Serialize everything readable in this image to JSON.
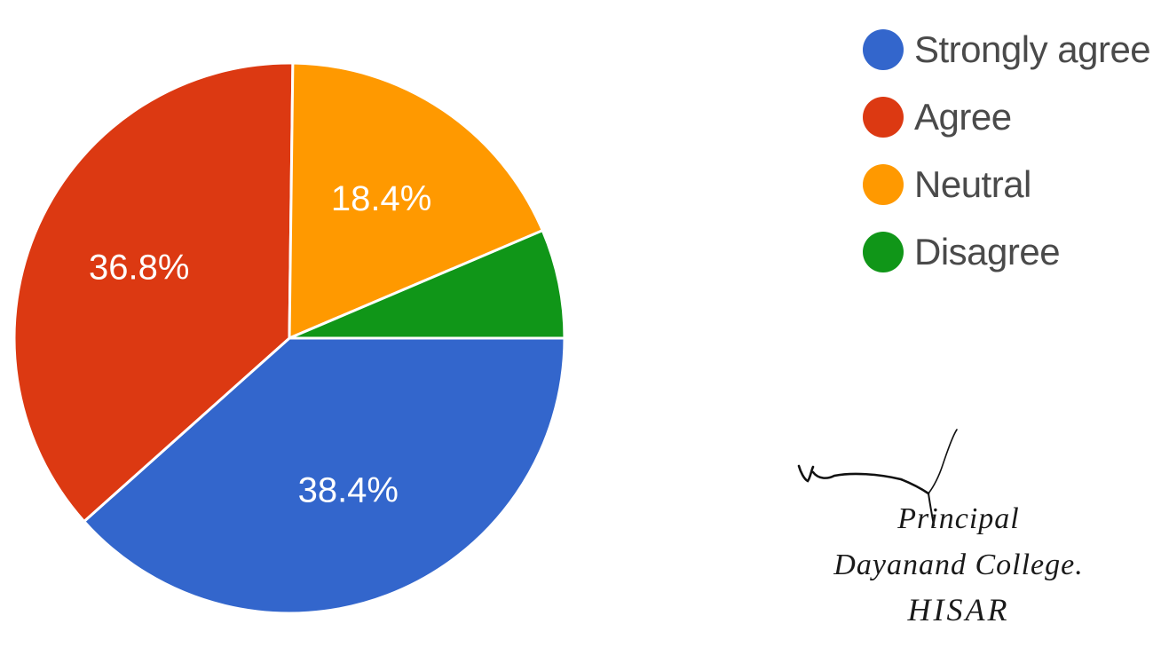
{
  "chart_data": {
    "type": "pie",
    "categories": [
      "Strongly agree",
      "Agree",
      "Neutral",
      "Disagree"
    ],
    "values": [
      38.4,
      36.8,
      18.4,
      6.4
    ],
    "colors": [
      "#3366cc",
      "#dc3912",
      "#ff9900",
      "#109618"
    ],
    "labels": [
      "38.4%",
      "36.8%",
      "18.4%",
      ""
    ],
    "legend_position": "right"
  },
  "signature": {
    "line1": "Principal",
    "line2": "Dayanand College.",
    "line3": "HISAR"
  }
}
